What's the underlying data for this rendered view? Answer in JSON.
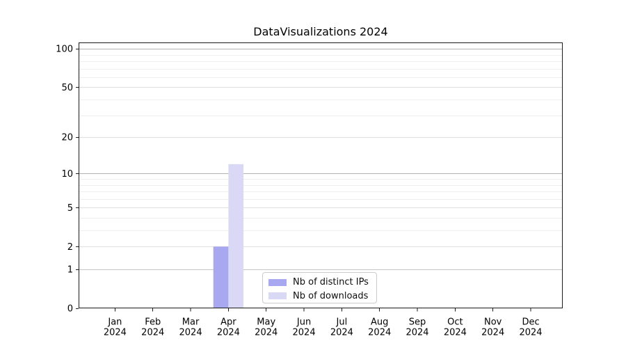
{
  "title": "DataVisualizations 2024",
  "chart_data": {
    "type": "bar",
    "title": "DataVisualizations 2024",
    "categories": [
      "Jan 2024",
      "Feb 2024",
      "Mar 2024",
      "Apr 2024",
      "May 2024",
      "Jun 2024",
      "Jul 2024",
      "Aug 2024",
      "Sep 2024",
      "Oct 2024",
      "Nov 2024",
      "Dec 2024"
    ],
    "month_labels": [
      "Jan",
      "Feb",
      "Mar",
      "Apr",
      "May",
      "Jun",
      "Jul",
      "Aug",
      "Sep",
      "Oct",
      "Nov",
      "Dec"
    ],
    "year_label": "2024",
    "series": [
      {
        "name": "Nb of distinct IPs",
        "color": "#a8a8f0",
        "values": [
          0,
          0,
          0,
          2,
          0,
          0,
          0,
          0,
          0,
          0,
          0,
          0
        ]
      },
      {
        "name": "Nb of downloads",
        "color": "#d9d9f6",
        "values": [
          0,
          0,
          0,
          12,
          0,
          0,
          0,
          0,
          0,
          0,
          0,
          0
        ]
      }
    ],
    "y_major_ticks": [
      0,
      1,
      2,
      5,
      10,
      20,
      50,
      100
    ],
    "y_minor_gridlines": [
      3,
      4,
      6,
      7,
      8,
      9,
      30,
      40,
      60,
      70,
      80,
      90
    ],
    "y_scale": "log10(value+1)",
    "ylim": [
      0,
      112
    ],
    "xlabel": "",
    "ylabel": "",
    "grid": true,
    "legend_position": "bottom-center",
    "colors": {
      "spine": "#1a1a1a",
      "grid_power10": "#b0b0b0",
      "grid_one": "#c4c4c4",
      "grid_major": "#dedede",
      "grid_minor": "#eeeeee",
      "text": "#000000",
      "legend_border": "#cccccc"
    }
  }
}
